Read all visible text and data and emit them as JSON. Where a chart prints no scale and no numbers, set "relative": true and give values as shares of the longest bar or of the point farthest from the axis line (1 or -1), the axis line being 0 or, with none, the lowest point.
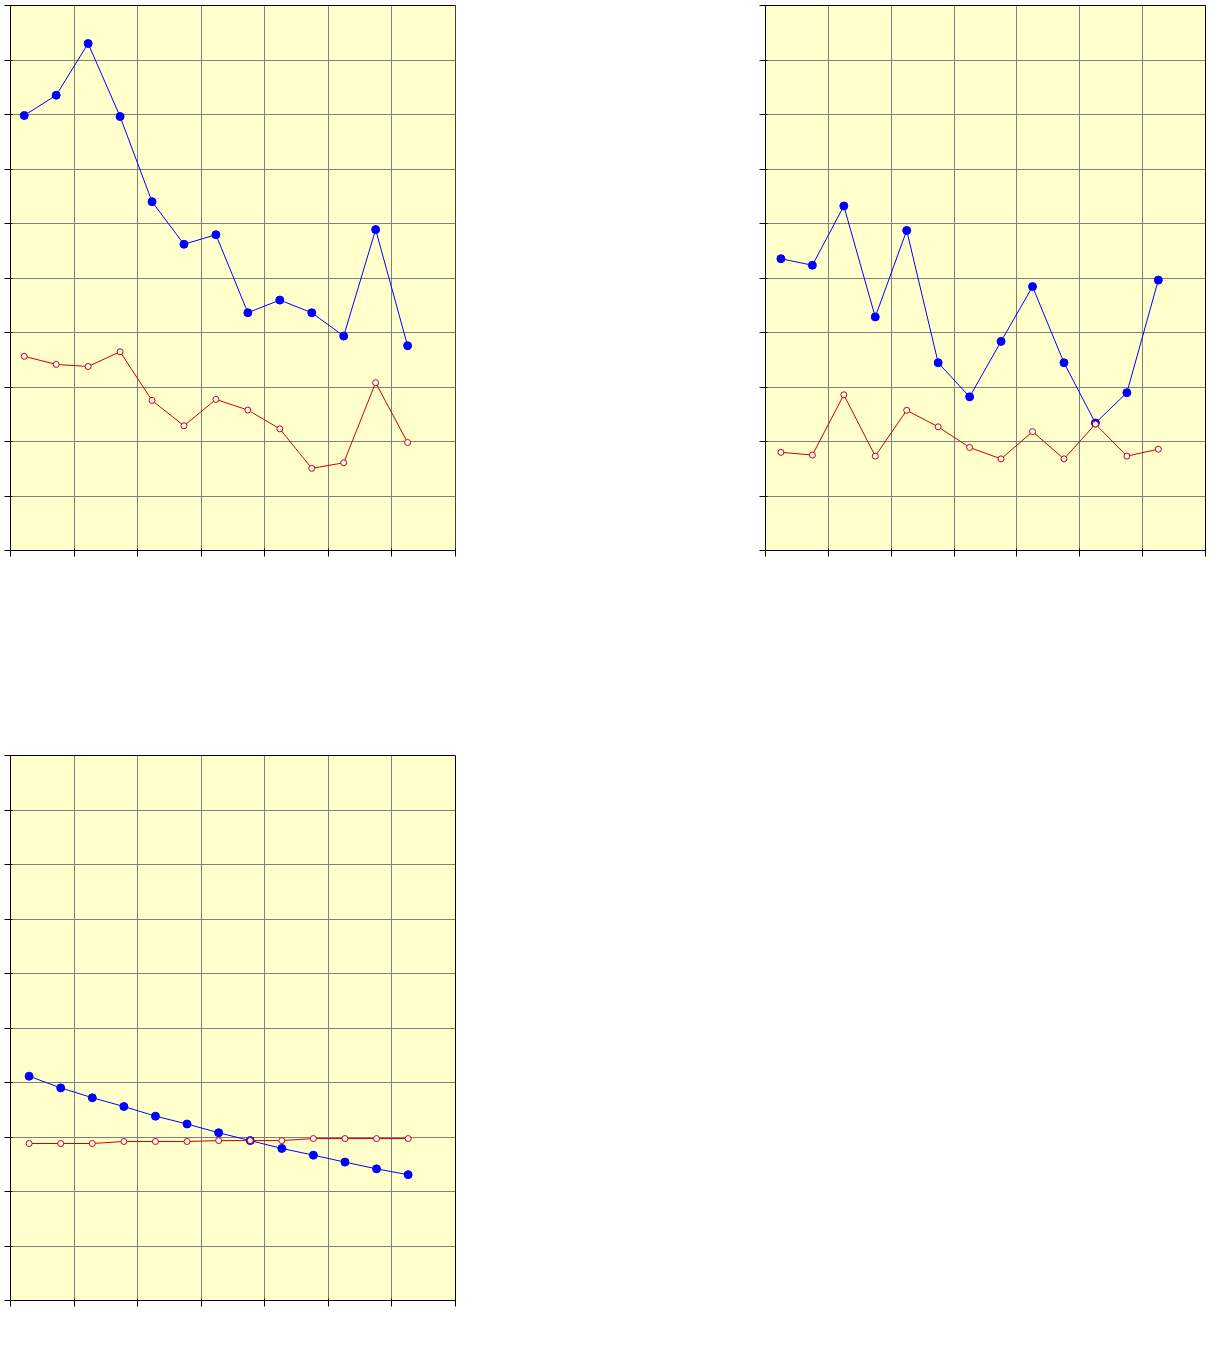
{
  "chart_data": [
    {
      "type": "line",
      "relative": true,
      "grid": true,
      "marker": "circle",
      "tick_labels": false,
      "categories": [
        null,
        null,
        null,
        null,
        null,
        null,
        null,
        null,
        null,
        null,
        null,
        null,
        null
      ],
      "series": [
        {
          "color": "#0000ff",
          "values": [
            0.858,
            0.898,
            1,
            0.856,
            0.688,
            0.604,
            0.623,
            0.469,
            0.494,
            0.469,
            0.423,
            0.633,
            0.404
          ]
        },
        {
          "color": "#cc0000",
          "values": [
            0.383,
            0.367,
            0.363,
            0.392,
            0.296,
            0.246,
            0.298,
            0.277,
            0.24,
            0.162,
            0.173,
            0.331,
            0.213
          ]
        }
      ]
    },
    {
      "type": "line",
      "relative": true,
      "grid": true,
      "marker": "circle",
      "tick_labels": false,
      "categories": [
        null,
        null,
        null,
        null,
        null,
        null,
        null,
        null,
        null,
        null,
        null,
        null,
        null
      ],
      "series": [
        {
          "color": "#0000ff",
          "values": [
            0.847,
            0.828,
            1,
            0.678,
            0.929,
            0.545,
            0.446,
            0.607,
            0.766,
            0.545,
            0.37,
            0.458,
            0.785
          ]
        },
        {
          "color": "#cc0000",
          "values": [
            0.285,
            0.277,
            0.452,
            0.274,
            0.407,
            0.359,
            0.299,
            0.266,
            0.345,
            0.266,
            0.367,
            0.274,
            0.294
          ]
        }
      ]
    },
    {
      "type": "line",
      "relative": true,
      "grid": true,
      "marker": "circle",
      "tick_labels": false,
      "categories": [
        null,
        null,
        null,
        null,
        null,
        null,
        null,
        null,
        null,
        null,
        null,
        null,
        null
      ],
      "series": [
        {
          "color": "#0000ff",
          "values": [
            1,
            0.948,
            0.904,
            0.865,
            0.822,
            0.787,
            0.748,
            0.713,
            0.678,
            0.648,
            0.617,
            0.587,
            0.561
          ]
        },
        {
          "color": "#cc0000",
          "values": [
            0.7,
            0.7,
            0.7,
            0.709,
            0.709,
            0.709,
            0.713,
            0.713,
            0.713,
            0.722,
            0.722,
            0.722,
            0.722
          ]
        }
      ]
    }
  ]
}
